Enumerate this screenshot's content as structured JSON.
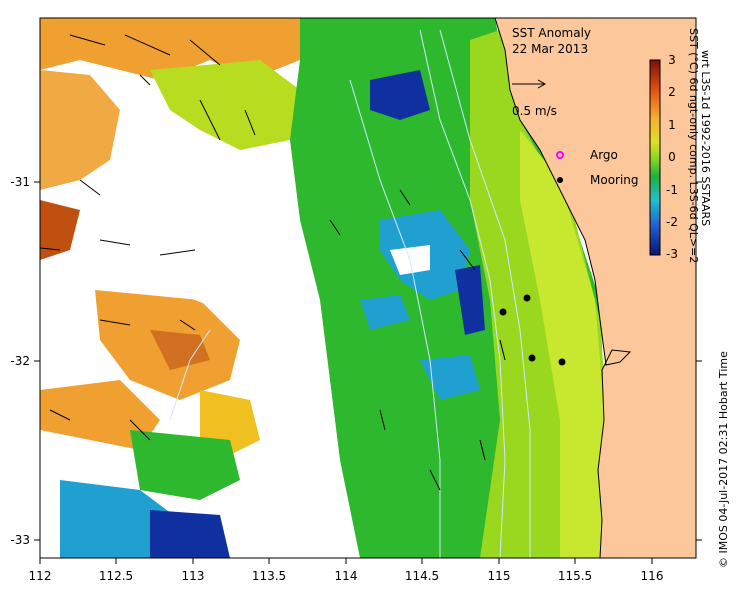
{
  "map": {
    "title": "SST Anomaly",
    "date": "22 Mar 2013",
    "scale_vector_label": "0.5 m/s",
    "x_ticks": [
      "112",
      "112.5",
      "113",
      "113.5",
      "114",
      "114.5",
      "115",
      "115.5",
      "116"
    ],
    "y_ticks": [
      "-31",
      "-32",
      "-33"
    ],
    "legend": {
      "argo_label": "Argo",
      "mooring_label": "Mooring"
    },
    "colorbar": {
      "ticks": [
        "3",
        "2",
        "1",
        "0",
        "-1",
        "-2",
        "-3"
      ],
      "label_line1": "SST (°C) 6d ngt-only comp. L3S-6d QL>=2",
      "label_line2": "wrt L3S-1d 1992-2016 SSTAARS"
    },
    "credit": "© IMOS 04-Jul-2017 02:31 Hobart Time",
    "colors": {
      "land": "#fbc79b",
      "warm": "#f0a030",
      "hot": "#c05010",
      "neutral": "#9ad820",
      "cool": "#2db82d",
      "cold": "#1030a0",
      "argo": "#ff00ff",
      "mooring": "#000000"
    }
  }
}
